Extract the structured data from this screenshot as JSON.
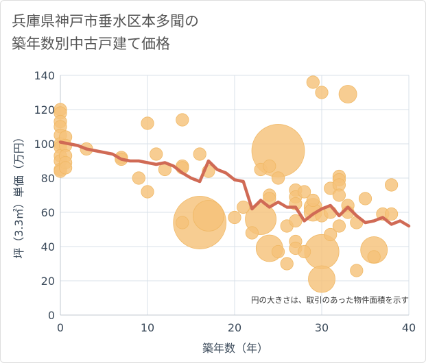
{
  "title": {
    "line1": "兵庫県神戸市垂水区本多聞の",
    "line2": "築年数別中古戸建て価格"
  },
  "colors": {
    "bubble": "#f5c27a",
    "bubble_stroke": "#f0b865",
    "line": "#d06a55",
    "grid": "#d9e0e8",
    "text": "#3b4a5a"
  },
  "chart_data": {
    "type": "scatter",
    "xlabel": "築年数（年）",
    "ylabel": "坪（3.3㎡）単価（万円）",
    "xlim": [
      0,
      40
    ],
    "ylim": [
      0,
      140
    ],
    "xticks": [
      0,
      10,
      20,
      30,
      40
    ],
    "yticks": [
      0,
      20,
      40,
      60,
      80,
      100,
      120,
      140
    ],
    "grid": true,
    "annotation": "円の大きさは、取引のあった物件面積を示す",
    "bubbles": [
      {
        "x": 0,
        "y": 120,
        "s": 2
      },
      {
        "x": 0,
        "y": 118,
        "s": 2
      },
      {
        "x": 0,
        "y": 113,
        "s": 2
      },
      {
        "x": 0,
        "y": 110,
        "s": 2
      },
      {
        "x": 0,
        "y": 105,
        "s": 2
      },
      {
        "x": 0,
        "y": 100,
        "s": 2
      },
      {
        "x": 0,
        "y": 98,
        "s": 2
      },
      {
        "x": 0,
        "y": 93,
        "s": 2
      },
      {
        "x": 0,
        "y": 90,
        "s": 2
      },
      {
        "x": 0,
        "y": 85,
        "s": 2
      },
      {
        "x": 0,
        "y": 84,
        "s": 2
      },
      {
        "x": 0.6,
        "y": 104,
        "s": 2
      },
      {
        "x": 0.6,
        "y": 99,
        "s": 2
      },
      {
        "x": 0.6,
        "y": 93,
        "s": 2
      },
      {
        "x": 0.6,
        "y": 89,
        "s": 2
      },
      {
        "x": 0.6,
        "y": 86,
        "s": 2
      },
      {
        "x": 3,
        "y": 97,
        "s": 2
      },
      {
        "x": 7,
        "y": 92,
        "s": 2
      },
      {
        "x": 7,
        "y": 91,
        "s": 2
      },
      {
        "x": 9,
        "y": 80,
        "s": 2
      },
      {
        "x": 10,
        "y": 112,
        "s": 2
      },
      {
        "x": 10,
        "y": 72,
        "s": 2
      },
      {
        "x": 11,
        "y": 94,
        "s": 2
      },
      {
        "x": 12,
        "y": 85,
        "s": 2
      },
      {
        "x": 14,
        "y": 114,
        "s": 2
      },
      {
        "x": 14,
        "y": 87,
        "s": 2
      },
      {
        "x": 14,
        "y": 86,
        "s": 2
      },
      {
        "x": 14,
        "y": 54,
        "s": 2
      },
      {
        "x": 16,
        "y": 94,
        "s": 2
      },
      {
        "x": 16,
        "y": 54,
        "s": 35
      },
      {
        "x": 17,
        "y": 58,
        "s": 12
      },
      {
        "x": 17,
        "y": 84,
        "s": 2
      },
      {
        "x": 20,
        "y": 57,
        "s": 2
      },
      {
        "x": 21,
        "y": 63,
        "s": 2
      },
      {
        "x": 22,
        "y": 48,
        "s": 2
      },
      {
        "x": 23,
        "y": 85,
        "s": 2
      },
      {
        "x": 23,
        "y": 56,
        "s": 12
      },
      {
        "x": 24,
        "y": 87,
        "s": 2
      },
      {
        "x": 24,
        "y": 70,
        "s": 2
      },
      {
        "x": 24,
        "y": 68,
        "s": 2
      },
      {
        "x": 24,
        "y": 39,
        "s": 9
      },
      {
        "x": 25,
        "y": 96,
        "s": 35
      },
      {
        "x": 25,
        "y": 80,
        "s": 2
      },
      {
        "x": 25,
        "y": 37,
        "s": 2
      },
      {
        "x": 26,
        "y": 52,
        "s": 2
      },
      {
        "x": 26,
        "y": 30,
        "s": 2
      },
      {
        "x": 27,
        "y": 73,
        "s": 2
      },
      {
        "x": 27,
        "y": 69,
        "s": 2
      },
      {
        "x": 27,
        "y": 65,
        "s": 2
      },
      {
        "x": 27,
        "y": 55,
        "s": 2
      },
      {
        "x": 27,
        "y": 43,
        "s": 2
      },
      {
        "x": 27,
        "y": 39,
        "s": 2
      },
      {
        "x": 28,
        "y": 72,
        "s": 2
      },
      {
        "x": 28,
        "y": 37,
        "s": 2
      },
      {
        "x": 29,
        "y": 136,
        "s": 2
      },
      {
        "x": 29,
        "y": 67,
        "s": 2
      },
      {
        "x": 29,
        "y": 63,
        "s": 4
      },
      {
        "x": 29,
        "y": 60,
        "s": 4
      },
      {
        "x": 30,
        "y": 130,
        "s": 2
      },
      {
        "x": 30,
        "y": 58,
        "s": 2
      },
      {
        "x": 30,
        "y": 37,
        "s": 15
      },
      {
        "x": 30,
        "y": 21,
        "s": 9
      },
      {
        "x": 31,
        "y": 74,
        "s": 2
      },
      {
        "x": 31,
        "y": 60,
        "s": 2
      },
      {
        "x": 31,
        "y": 47,
        "s": 2
      },
      {
        "x": 32,
        "y": 81,
        "s": 2
      },
      {
        "x": 32,
        "y": 79,
        "s": 2
      },
      {
        "x": 32,
        "y": 76,
        "s": 2
      },
      {
        "x": 32,
        "y": 70,
        "s": 2
      },
      {
        "x": 32,
        "y": 52,
        "s": 2
      },
      {
        "x": 33,
        "y": 129,
        "s": 4
      },
      {
        "x": 33,
        "y": 64,
        "s": 2
      },
      {
        "x": 33,
        "y": 60,
        "s": 2
      },
      {
        "x": 34,
        "y": 54,
        "s": 2
      },
      {
        "x": 34,
        "y": 26,
        "s": 2
      },
      {
        "x": 35,
        "y": 68,
        "s": 2
      },
      {
        "x": 36,
        "y": 38,
        "s": 9
      },
      {
        "x": 36,
        "y": 34,
        "s": 2
      },
      {
        "x": 37,
        "y": 59,
        "s": 2
      },
      {
        "x": 38,
        "y": 76,
        "s": 2
      },
      {
        "x": 38,
        "y": 59,
        "s": 2
      }
    ],
    "series": [
      {
        "x": [
          0,
          1,
          2,
          3,
          4,
          5,
          6,
          7,
          8,
          9,
          10,
          11,
          12,
          13,
          14,
          15,
          16,
          17,
          18,
          19,
          20,
          21,
          22,
          23,
          24,
          25,
          26,
          27,
          28,
          29,
          30,
          31,
          32,
          33,
          34,
          35,
          36,
          37,
          38,
          39,
          40
        ],
        "values": [
          101,
          100,
          99,
          97,
          96,
          95,
          94,
          91,
          90,
          90,
          89,
          88,
          89,
          87,
          83,
          80,
          78,
          90,
          85,
          83,
          79,
          78,
          62,
          67,
          63,
          66,
          63,
          63,
          55,
          59,
          62,
          64,
          58,
          63,
          58,
          54,
          55,
          57,
          53,
          55,
          52
        ]
      }
    ]
  }
}
